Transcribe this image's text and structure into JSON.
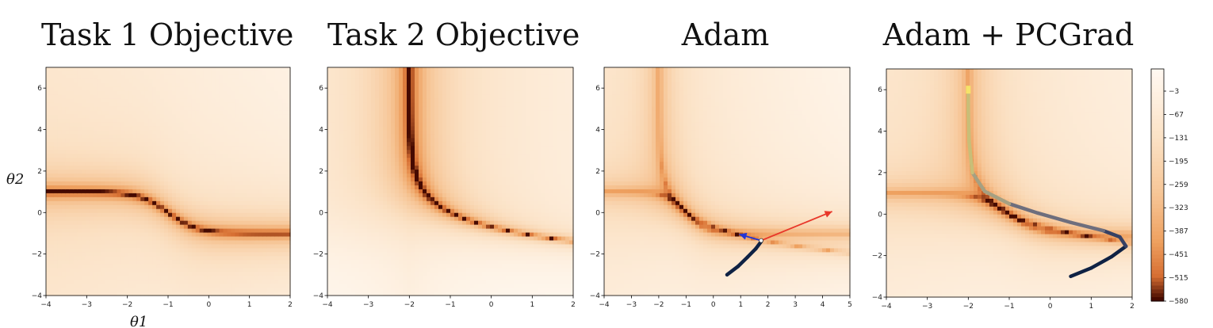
{
  "chart_data": [
    {
      "type": "heatmap",
      "title": "Task 1 Objective",
      "xlim": [
        -4,
        2
      ],
      "ylim": [
        -4,
        7
      ],
      "xticks": [
        "−4",
        "−3",
        "−2",
        "−1",
        "0",
        "1",
        "2"
      ],
      "yticks": [
        "−4",
        "−2",
        "0",
        "2",
        "4",
        "6"
      ],
      "xlabel": "θ1",
      "ylabel": "θ2"
    },
    {
      "type": "heatmap",
      "title": "Task 2 Objective",
      "xlim": [
        -4,
        2
      ],
      "ylim": [
        -4,
        7
      ],
      "xticks": [
        "−4",
        "−3",
        "−2",
        "−1",
        "0",
        "1",
        "2"
      ],
      "yticks": [
        "−4",
        "−2",
        "0",
        "2",
        "4",
        "6"
      ]
    },
    {
      "type": "heatmap",
      "title": "Adam",
      "xlim": [
        -4,
        5
      ],
      "ylim": [
        -4,
        7
      ],
      "xticks": [
        "−4",
        "−3",
        "−2",
        "−1",
        "0",
        "1",
        "2",
        "3",
        "4",
        "5"
      ],
      "yticks": [
        "−4",
        "−2",
        "0",
        "2",
        "4",
        "6"
      ],
      "trajectory": [
        [
          0.5,
          -3.0
        ],
        [
          0.9,
          -2.6
        ],
        [
          1.25,
          -2.15
        ],
        [
          1.55,
          -1.75
        ],
        [
          1.75,
          -1.4
        ]
      ],
      "arrows": [
        {
          "color": "#2135d6",
          "from": [
            1.75,
            -1.35
          ],
          "to": [
            0.95,
            -1.05
          ]
        },
        {
          "color": "#e8372a",
          "from": [
            1.75,
            -1.35
          ],
          "to": [
            4.35,
            0.05
          ]
        }
      ]
    },
    {
      "type": "heatmap",
      "title": "Adam + PCGrad",
      "xlim": [
        -4,
        2
      ],
      "ylim": [
        -4,
        7
      ],
      "xticks": [
        "−4",
        "−3",
        "−2",
        "−1",
        "0",
        "1",
        "2"
      ],
      "yticks": [
        "−4",
        "−2",
        "0",
        "2",
        "4",
        "6"
      ],
      "trajectory": [
        [
          0.5,
          -3.0
        ],
        [
          1.0,
          -2.6
        ],
        [
          1.5,
          -2.05
        ],
        [
          1.85,
          -1.55
        ],
        [
          1.7,
          -1.1
        ],
        [
          1.3,
          -0.8
        ],
        [
          0.5,
          -0.4
        ],
        [
          -0.3,
          0.05
        ],
        [
          -1.0,
          0.5
        ],
        [
          -1.6,
          1.1
        ],
        [
          -1.9,
          2.0
        ],
        [
          -1.98,
          3.5
        ],
        [
          -2.0,
          5.0
        ],
        [
          -2.0,
          6.0
        ]
      ]
    }
  ],
  "colorbar": {
    "ticks": [
      "−3",
      "−67",
      "−131",
      "−195",
      "−259",
      "−323",
      "−387",
      "−451",
      "−515",
      "−580"
    ]
  }
}
